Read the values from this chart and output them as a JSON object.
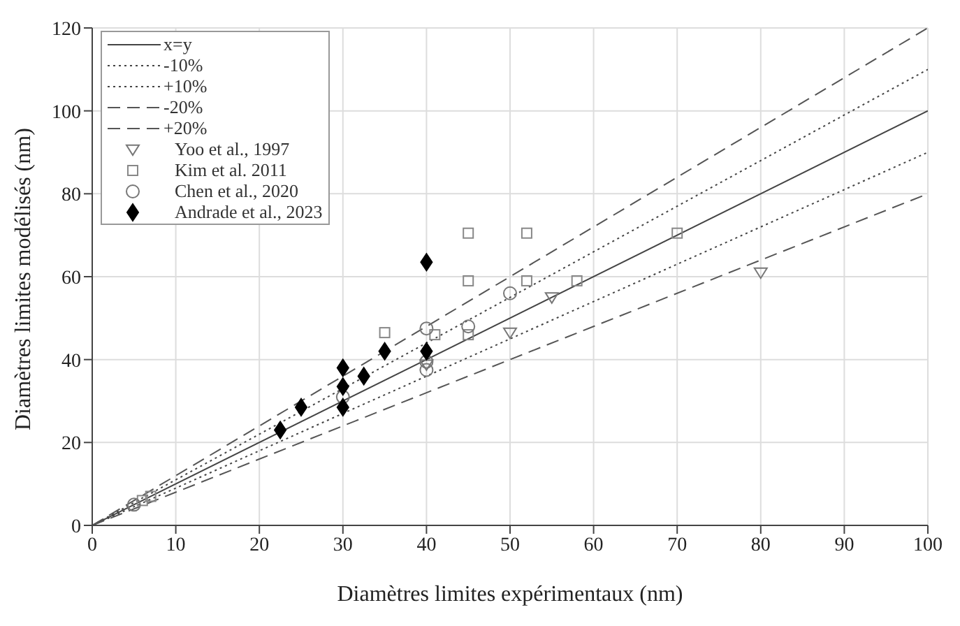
{
  "chart_data": {
    "type": "scatter",
    "xlabel": "Diamètres limites expérimentaux (nm)",
    "ylabel": "Diamètres limites modélisés (nm)",
    "xlim": [
      0,
      100
    ],
    "xticks": [
      0,
      10,
      20,
      30,
      40,
      50,
      60,
      70,
      80,
      90,
      100
    ],
    "ylim": [
      0,
      120
    ],
    "yticks": [
      0,
      20,
      40,
      60,
      80,
      100,
      120
    ],
    "grid": true,
    "legend": "top left",
    "series": [
      {
        "name": "x=y",
        "type": "line",
        "color": "#444444",
        "line_style": "solid",
        "marker": "none",
        "x": [
          0,
          100
        ],
        "values": [
          0,
          100
        ]
      },
      {
        "name": "-10%",
        "type": "line",
        "color": "#444444",
        "line_style": "dotted",
        "marker": "none",
        "x": [
          0,
          100
        ],
        "values": [
          0,
          90
        ]
      },
      {
        "name": "+10%",
        "type": "line",
        "color": "#444444",
        "line_style": "dotted",
        "marker": "none",
        "x": [
          0,
          100
        ],
        "values": [
          0,
          110
        ]
      },
      {
        "name": "-20%",
        "type": "line",
        "color": "#555555",
        "line_style": "dashed",
        "marker": "none",
        "x": [
          0,
          100
        ],
        "values": [
          0,
          80
        ]
      },
      {
        "name": "+20%",
        "type": "line",
        "color": "#555555",
        "line_style": "dashed",
        "marker": "none",
        "x": [
          0,
          100
        ],
        "values": [
          0,
          120
        ]
      },
      {
        "name": "Yoo et al., 1997",
        "type": "scatter",
        "color": "#777777",
        "marker": "triangle",
        "x": [
          40,
          50,
          55,
          80
        ],
        "values": [
          38.8,
          46.5,
          55,
          61
        ]
      },
      {
        "name": "Kim et al. 2011",
        "type": "scatter",
        "color": "#888888",
        "marker": "square",
        "x": [
          6,
          7,
          35,
          41,
          45,
          45,
          45,
          52,
          52,
          58,
          70
        ],
        "values": [
          6,
          7,
          46.5,
          46,
          46,
          59,
          70.5,
          70.5,
          59,
          59,
          70.5
        ]
      },
      {
        "name": "Chen et  al., 2020",
        "type": "scatter",
        "color": "#777777",
        "marker": "circle",
        "x": [
          5,
          30,
          40,
          40,
          40,
          45,
          50
        ],
        "values": [
          5,
          31,
          47.5,
          39.5,
          37.5,
          48,
          56
        ]
      },
      {
        "name": "Andrade et al., 2023",
        "type": "scatter",
        "color": "#000000",
        "marker": "diamond",
        "x": [
          22.5,
          25,
          30,
          30,
          30,
          32.5,
          35,
          40,
          40
        ],
        "values": [
          23,
          28.5,
          38,
          33.5,
          28.5,
          36,
          42,
          42,
          63.5
        ]
      }
    ]
  }
}
